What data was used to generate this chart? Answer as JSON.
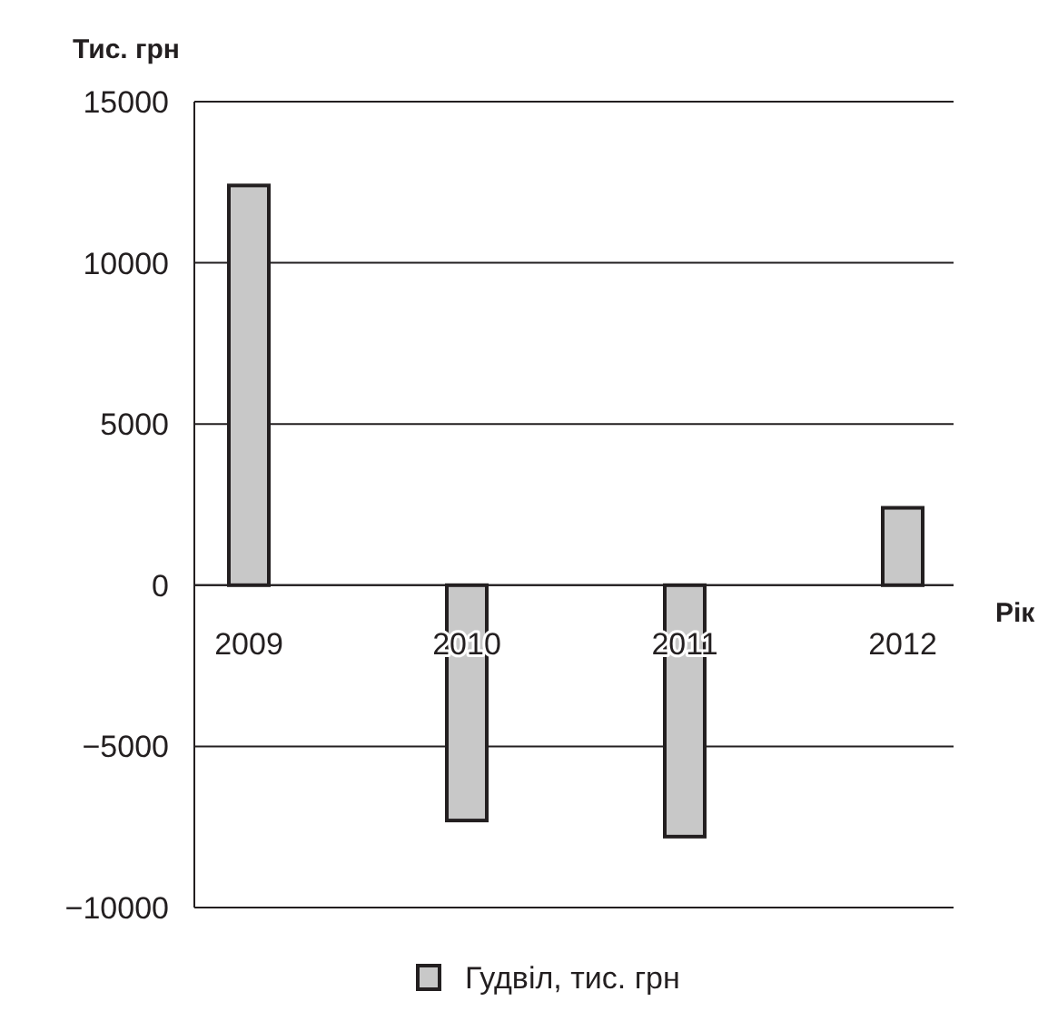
{
  "chart_data": {
    "type": "bar",
    "ylabel": "Тис. грн",
    "xlabel": "Рік",
    "categories": [
      "2009",
      "2010",
      "2011",
      "2012"
    ],
    "series": [
      {
        "name": "Гудвіл, тис. грн",
        "color": "#c8c8c8",
        "values": [
          12400,
          -7300,
          -7800,
          2400
        ]
      }
    ],
    "ylim": [
      -10000,
      15000
    ],
    "yticks": [
      -10000,
      -5000,
      0,
      5000,
      10000,
      15000
    ],
    "grid": "y",
    "legend": "bottom"
  }
}
